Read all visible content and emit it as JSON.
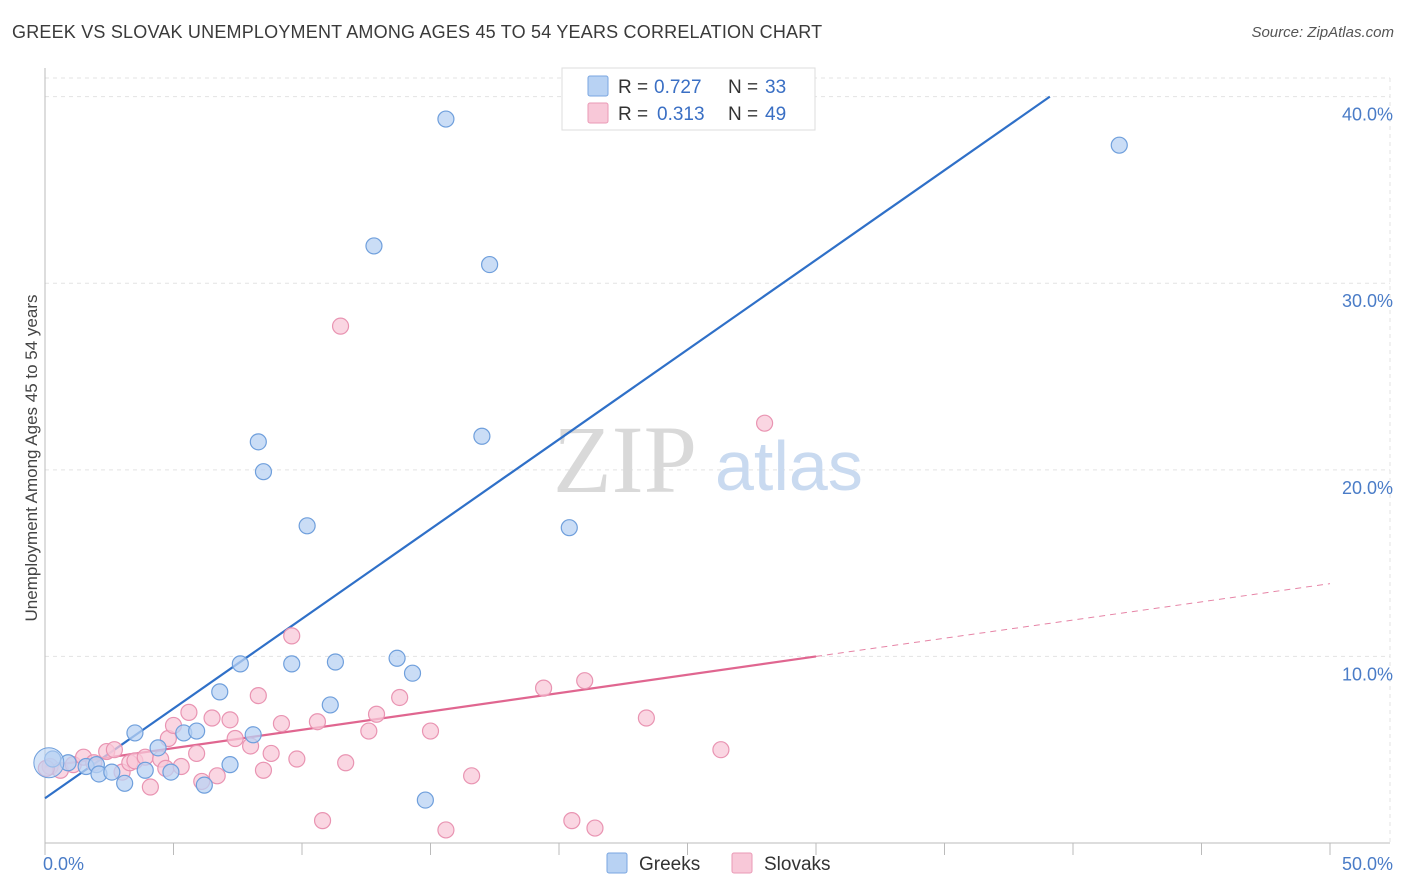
{
  "title": "GREEK VS SLOVAK UNEMPLOYMENT AMONG AGES 45 TO 54 YEARS CORRELATION CHART",
  "source": "Source: ZipAtlas.com",
  "watermark": {
    "zip": "ZIP",
    "atlas": "atlas"
  },
  "legend": {
    "r_label": "R =",
    "n_label": "N =",
    "items": [
      {
        "r": "0.727",
        "n": "33",
        "fill": "#b8d2f3",
        "stroke": "#7aa6e0"
      },
      {
        "r": "0.313",
        "n": "49",
        "fill": "#f8c8d8",
        "stroke": "#ea9ab6"
      }
    ]
  },
  "colors": {
    "greeks_fill": "#b8d2f3",
    "greeks_stroke": "#6f9fdc",
    "greeks_line": "#2f70c8",
    "slovaks_fill": "#f8c8d8",
    "slovaks_stroke": "#e994b2",
    "slovaks_line": "#e06690",
    "grid": "#e3e3e3",
    "axis": "#bbbbbb"
  },
  "chart_data": {
    "type": "scatter",
    "title": "GREEK VS SLOVAK UNEMPLOYMENT AMONG AGES 45 TO 54 YEARS CORRELATION CHART",
    "xlabel": "",
    "ylabel": "Unemployment Among Ages 45 to 54 years",
    "xlim": [
      0,
      50
    ],
    "ylim": [
      0,
      41
    ],
    "x_tick_labels": [
      "0.0%",
      "50.0%"
    ],
    "y_ticks": [
      10,
      20,
      30,
      40
    ],
    "y_tick_labels": [
      "10.0%",
      "20.0%",
      "30.0%",
      "40.0%"
    ],
    "grid": true,
    "legend_position": "top-center",
    "series": [
      {
        "name": "Greeks",
        "r": 0.727,
        "n": 33,
        "trend": {
          "x": [
            0,
            39.1
          ],
          "y": [
            2.4,
            40.0
          ],
          "dashed_to": null
        },
        "points": [
          [
            0.3,
            4.5
          ],
          [
            0.9,
            4.3
          ],
          [
            1.6,
            4.1
          ],
          [
            2.0,
            4.2
          ],
          [
            2.1,
            3.7
          ],
          [
            2.6,
            3.8
          ],
          [
            3.1,
            3.2
          ],
          [
            3.5,
            5.9
          ],
          [
            3.9,
            3.9
          ],
          [
            4.4,
            5.1
          ],
          [
            4.9,
            3.8
          ],
          [
            5.4,
            5.9
          ],
          [
            5.9,
            6.0
          ],
          [
            6.2,
            3.1
          ],
          [
            6.8,
            8.1
          ],
          [
            7.2,
            4.2
          ],
          [
            7.6,
            9.6
          ],
          [
            8.1,
            5.8
          ],
          [
            8.3,
            21.5
          ],
          [
            8.5,
            19.9
          ],
          [
            9.6,
            9.6
          ],
          [
            10.2,
            17.0
          ],
          [
            11.1,
            7.4
          ],
          [
            11.3,
            9.7
          ],
          [
            12.8,
            32.0
          ],
          [
            13.7,
            9.9
          ],
          [
            14.3,
            9.1
          ],
          [
            14.8,
            2.3
          ],
          [
            15.6,
            38.8
          ],
          [
            17.0,
            21.8
          ],
          [
            17.3,
            31.0
          ],
          [
            20.4,
            16.9
          ],
          [
            41.8,
            37.4
          ]
        ]
      },
      {
        "name": "Slovaks",
        "r": 0.313,
        "n": 49,
        "trend": {
          "x": [
            0,
            30.0
          ],
          "y": [
            4.1,
            10.0
          ],
          "dashed_to": [
            50.0,
            13.9
          ]
        },
        "points": [
          [
            0.2,
            4.1
          ],
          [
            0.6,
            3.9
          ],
          [
            1.1,
            4.2
          ],
          [
            1.5,
            4.6
          ],
          [
            1.9,
            4.3
          ],
          [
            2.4,
            4.9
          ],
          [
            2.7,
            5.0
          ],
          [
            3.0,
            3.8
          ],
          [
            3.3,
            4.3
          ],
          [
            3.5,
            4.4
          ],
          [
            3.9,
            4.6
          ],
          [
            4.1,
            3.0
          ],
          [
            4.5,
            4.5
          ],
          [
            4.7,
            4.0
          ],
          [
            4.8,
            5.6
          ],
          [
            5.0,
            6.3
          ],
          [
            5.3,
            4.1
          ],
          [
            5.6,
            7.0
          ],
          [
            5.9,
            4.8
          ],
          [
            6.1,
            3.3
          ],
          [
            6.5,
            6.7
          ],
          [
            6.7,
            3.6
          ],
          [
            7.2,
            6.6
          ],
          [
            7.4,
            5.6
          ],
          [
            8.0,
            5.2
          ],
          [
            8.3,
            7.9
          ],
          [
            8.5,
            3.9
          ],
          [
            8.8,
            4.8
          ],
          [
            9.2,
            6.4
          ],
          [
            9.6,
            11.1
          ],
          [
            9.8,
            4.5
          ],
          [
            10.6,
            6.5
          ],
          [
            10.8,
            1.2
          ],
          [
            11.5,
            27.7
          ],
          [
            11.7,
            4.3
          ],
          [
            12.6,
            6.0
          ],
          [
            12.9,
            6.9
          ],
          [
            13.8,
            7.8
          ],
          [
            15.0,
            6.0
          ],
          [
            15.6,
            0.7
          ],
          [
            16.6,
            3.6
          ],
          [
            19.4,
            8.3
          ],
          [
            20.5,
            1.2
          ],
          [
            21.0,
            8.7
          ],
          [
            21.4,
            0.8
          ],
          [
            23.4,
            6.7
          ],
          [
            26.3,
            5.0
          ],
          [
            28.0,
            22.5
          ],
          [
            0.05,
            4.0
          ]
        ]
      }
    ]
  }
}
